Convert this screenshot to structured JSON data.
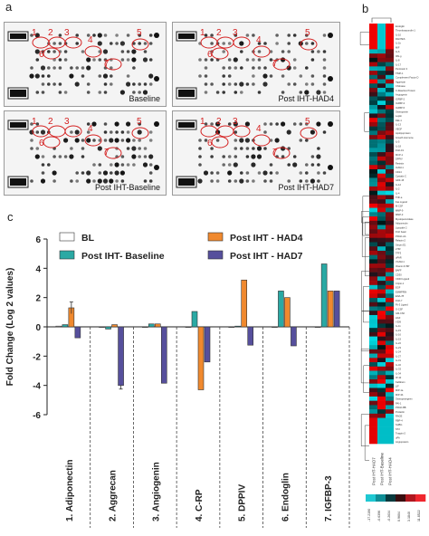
{
  "panel_labels": {
    "a": "a",
    "b": "b",
    "c": "c"
  },
  "blots": [
    {
      "caption": "Baseline",
      "spot_numbers": [
        "1",
        "2",
        "3",
        "4",
        "5",
        "6",
        "7"
      ]
    },
    {
      "caption": "Post IHT-HAD4",
      "spot_numbers": [
        "1",
        "2",
        "3",
        "4",
        "5",
        "6",
        "7"
      ]
    },
    {
      "caption": "Post IHT-Baseline",
      "spot_numbers": [
        "1",
        "2",
        "3",
        "4",
        "5",
        "6",
        "7"
      ]
    },
    {
      "caption": "Post IHT-HAD7",
      "spot_numbers": [
        "1",
        "2",
        "3",
        "4",
        "5",
        "6",
        "7"
      ]
    }
  ],
  "colors": {
    "bl": "#ffffff",
    "post_baseline": "#2aa9a4",
    "had4": "#f0892e",
    "had7": "#564f9c",
    "annotation_red": "#d42020"
  },
  "chart_data": {
    "type": "bar",
    "ylabel": "Fold Change (Log 2 values)",
    "ylim": [
      -6,
      6
    ],
    "yticks": [
      "6",
      "4",
      "2",
      "0",
      "-2",
      "-4",
      "-6"
    ],
    "categories": [
      "1. Adiponectin",
      "2. Aggrecan",
      "3. Angiogenin",
      "4. C-RP",
      "5. DPPIV",
      "6. Endoglin",
      "7. IGFBP-3"
    ],
    "series": [
      {
        "name": "BL",
        "values": [
          0.05,
          0.0,
          0.0,
          0.0,
          0.0,
          0.0,
          0.0
        ]
      },
      {
        "name": "Post IHT- Baseline",
        "values": [
          0.15,
          -0.15,
          0.2,
          1.05,
          0.05,
          2.45,
          4.3
        ]
      },
      {
        "name": "Post IHT - HAD4",
        "values": [
          1.3,
          0.15,
          0.2,
          -4.3,
          3.2,
          2.0,
          2.45
        ]
      },
      {
        "name": "Post IHT - HAD7",
        "values": [
          -0.75,
          -4.0,
          -3.85,
          -2.4,
          -1.25,
          -1.3,
          2.45
        ]
      }
    ],
    "errors": [
      0.4,
      0,
      0,
      0,
      0,
      0,
      0
    ],
    "legend": [
      "BL",
      "Post IHT - HAD4",
      "Post IHT- Baseline",
      "Post IHT - HAD7"
    ],
    "grid": false,
    "legend_position": "top"
  },
  "heatmap": {
    "row_labels": [
      "Endoglin",
      "Thrombospondin-1",
      "IL-10",
      "RANTES",
      "IL-1b",
      "MIF",
      "IL-6",
      "IFN-g",
      "IL-8",
      "IL-17",
      "Pentraxin 3",
      "TIMP-1",
      "Complement Factor D",
      "Aggrecan",
      "Chitinase",
      "C-Reactive Protein",
      "Angiogenin",
      "IGFBP-2",
      "IGFBP-3",
      "IGFBP-5",
      "Osteopontin",
      "Leptin",
      "Dkk-1",
      "IL-13",
      "VEGF",
      "Apolipoprotein",
      "Growth Hormone",
      "IL-5",
      "IL-18",
      "FGF-19",
      "MCP-1",
      "DPPIV",
      "Resistin",
      "ICAM-1",
      "CD14",
      "Cystatin C",
      "GDF-15",
      "IL-12",
      "IL-2",
      "IL-4",
      "TNF-a",
      "Fas Ligand",
      "M-CSF",
      "MMP-9",
      "MMP-3",
      "Myeloperoxidase",
      "Adiponectin",
      "Lipocalin-2",
      "FGF basic",
      "PDGF-AA",
      "Relaxin-2",
      "Serpin E1",
      "sTfR",
      "TFF3",
      "uPAR",
      "VCAM-1",
      "Vitamin D BP",
      "BAFF",
      "CD30",
      "CD40 Ligand",
      "Cripto-1",
      "EGF",
      "EMMPRIN",
      "ENA-78",
      "FGF-7",
      "Flt-3 Ligand",
      "G-CSF",
      "GM-CSF",
      "HGF",
      "I-309",
      "IL-11",
      "IL-15",
      "IL-16",
      "IL-19",
      "IL-22",
      "IL-23",
      "IL-24",
      "IL-27",
      "IL-31",
      "IL-32",
      "IL-33",
      "IL-34",
      "IP-10",
      "Kallikrein",
      "LIF",
      "MIP-1a",
      "MIP-3b",
      "Osteoprotegerin",
      "PAI-1",
      "PDGF-BB",
      "Prolactin",
      "RAGE",
      "RBP-4",
      "SHBG",
      "ST2",
      "Trappin-2",
      "uPA",
      "Angiopoietin"
    ],
    "column_labels": [
      "Post IHT-HAD7",
      "Post IHT-Baseline",
      "Post IHT-HAD4"
    ],
    "scale_labels": [
      "-17.2190",
      "-0.6396",
      "-0.2634",
      "0.9604",
      "3.1840",
      "11.8522"
    ]
  }
}
